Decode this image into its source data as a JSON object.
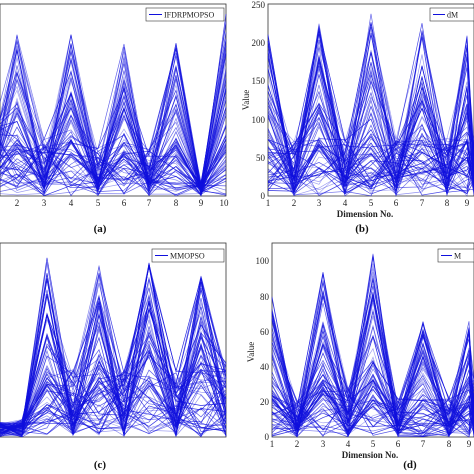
{
  "colors": {
    "line": "#1010dd",
    "axis": "#333333",
    "background": "#ffffff"
  },
  "chart_data": [
    {
      "type": "line",
      "panel": "a",
      "caption": "(a)",
      "xlabel": "",
      "ylabel": "",
      "legend": "IFDRPMOPSO",
      "legend_position": "top-right",
      "x": [
        1,
        2,
        3,
        4,
        5,
        6,
        7,
        8,
        9,
        10
      ],
      "xticks": [
        "2",
        "3",
        "4",
        "5",
        "6",
        "7",
        "8",
        "9",
        "10"
      ],
      "yticks": [],
      "ylim": [
        0,
        100
      ],
      "series_count": 80,
      "shape": "zigzag peaks at dimensions 2, 4, 6, 8 and 10; low values at 9, sharp rise to 10"
    },
    {
      "type": "line",
      "panel": "b",
      "caption": "(b)",
      "xlabel": "Dimension No.",
      "ylabel": "Value",
      "legend": "dM",
      "legend_position": "top-right",
      "x": [
        1,
        2,
        3,
        4,
        5,
        6,
        7,
        8,
        9,
        10
      ],
      "xticks": [
        "1",
        "2",
        "3",
        "4",
        "5",
        "6",
        "7",
        "8",
        "9",
        "10"
      ],
      "yticks": [
        "0",
        "50",
        "100",
        "150",
        "200",
        "250"
      ],
      "ylim": [
        0,
        250
      ],
      "series_count": 80,
      "shape": "zigzag peaks near 250 at dimensions 3, 5, 7, 9"
    },
    {
      "type": "line",
      "panel": "c",
      "caption": "(c)",
      "xlabel": "",
      "ylabel": "",
      "legend": "MMOPSO",
      "legend_position": "top-right",
      "x": [
        1,
        2,
        3,
        4,
        5,
        6,
        7,
        8,
        9,
        10
      ],
      "xticks": [],
      "yticks": [],
      "ylim": [
        0,
        100
      ],
      "series_count": 80,
      "shape": "flat near zero at dimensions 1-2, then zigzag peaks at 3, 5, 7, 9"
    },
    {
      "type": "line",
      "panel": "d",
      "caption": "(d)",
      "xlabel": "Dimension No.",
      "ylabel": "Value",
      "legend": "M",
      "legend_position": "top-right",
      "x": [
        1,
        2,
        3,
        4,
        5,
        6,
        7,
        8,
        9,
        10
      ],
      "xticks": [
        "1",
        "2",
        "3",
        "4",
        "5",
        "6",
        "7",
        "8",
        "9",
        "10"
      ],
      "yticks": [
        "0",
        "20",
        "40",
        "60",
        "80",
        "100"
      ],
      "ylim": [
        0,
        110
      ],
      "series_count": 80,
      "shape": "zigzag peaks near 110 at dimensions 3, 5; lower peaks later"
    }
  ]
}
